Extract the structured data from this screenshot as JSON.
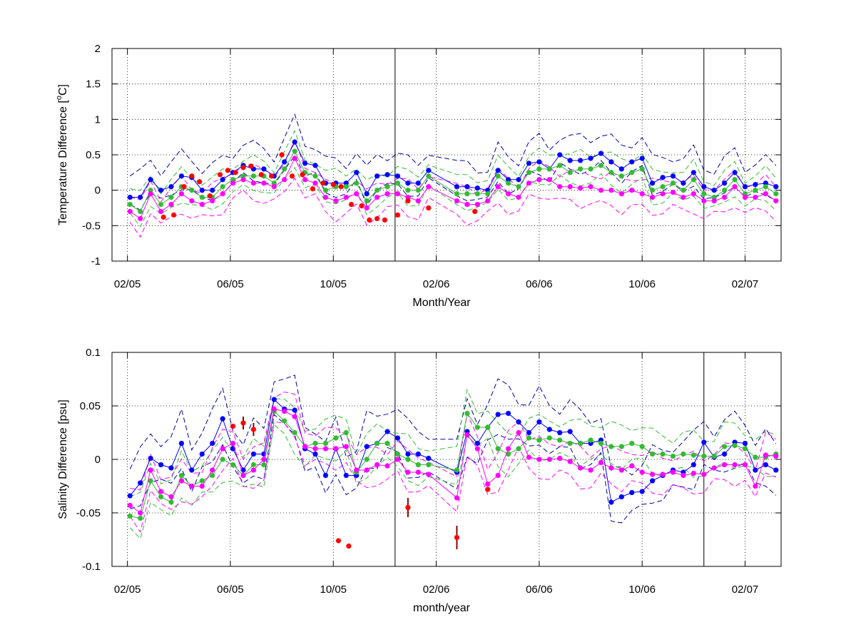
{
  "chart_data": [
    {
      "type": "line",
      "panel": "top",
      "xlabel": "Month/Year",
      "ylabel_main": "Temperature Difference [",
      "ylabel_sup": "o",
      "ylabel_tail": "C]",
      "xlim": [
        0,
        26
      ],
      "ylim": [
        -1,
        2
      ],
      "yticks": [
        -1,
        -0.5,
        0,
        0.5,
        1,
        1.5,
        2
      ],
      "ytick_labels": [
        "-1",
        "-0.5",
        "0",
        "0.5",
        "1",
        "1.5",
        "2"
      ],
      "xticks": [
        0.6,
        4.6,
        8.6,
        12.6,
        16.6,
        20.6,
        24.6
      ],
      "xtick_labels": [
        "02/05",
        "06/05",
        "10/05",
        "02/06",
        "06/06",
        "10/06",
        "02/07"
      ],
      "vertical_lines": [
        11,
        23
      ],
      "grid": true,
      "colors": {
        "blue": "#0000ff",
        "green": "#33bb33",
        "magenta": "#ff00ff",
        "red": "#ff0000",
        "darkblue": "#0000a0"
      },
      "series": [
        {
          "color": "blue",
          "role": "mean",
          "x": [
            0.7,
            1.1,
            1.5,
            1.9,
            2.3,
            2.7,
            3.1,
            3.5,
            3.9,
            4.3,
            4.7,
            5.1,
            5.5,
            5.9,
            6.3,
            6.7,
            7.1,
            7.5,
            7.9,
            8.3,
            8.7,
            9.1,
            9.5,
            9.9,
            10.3,
            10.7,
            11.1,
            11.5,
            11.9,
            12.3,
            13.4,
            13.8,
            14.2,
            14.6,
            15.0,
            15.4,
            15.8,
            16.2,
            16.6,
            17.0,
            17.4,
            17.8,
            18.2,
            18.6,
            19.0,
            19.4,
            19.8,
            20.2,
            20.6,
            21.0,
            21.4,
            21.8,
            22.2,
            22.6,
            23.0,
            23.4,
            23.8,
            24.2,
            24.6,
            25.0,
            25.4,
            25.8
          ],
          "y": [
            -0.1,
            -0.1,
            0.15,
            0,
            0.05,
            0.2,
            0.18,
            0,
            0,
            0.15,
            0.25,
            0.35,
            0.3,
            0.3,
            0.2,
            0.4,
            0.68,
            0.38,
            0.35,
            0.1,
            0.1,
            0.1,
            0.25,
            -0.05,
            0.2,
            0.22,
            0.2,
            0.1,
            0.1,
            0.28,
            0.05,
            0.05,
            0.03,
            0,
            0.28,
            0.15,
            0.15,
            0.38,
            0.4,
            0.3,
            0.5,
            0.42,
            0.42,
            0.45,
            0.52,
            0.4,
            0.3,
            0.4,
            0.45,
            0.1,
            0.18,
            0.2,
            0.1,
            0.25,
            0.05,
            0,
            0.1,
            0.25,
            0.05,
            0.08,
            0.1,
            0.05
          ]
        },
        {
          "color": "green",
          "role": "mean",
          "x": [
            0.7,
            1.1,
            1.5,
            1.9,
            2.3,
            2.7,
            3.1,
            3.5,
            3.9,
            4.3,
            4.7,
            5.1,
            5.5,
            5.9,
            6.3,
            6.7,
            7.1,
            7.5,
            7.9,
            8.3,
            8.7,
            9.1,
            9.5,
            9.9,
            10.3,
            10.7,
            11.1,
            11.5,
            11.9,
            12.3,
            13.4,
            13.8,
            14.2,
            14.6,
            15.0,
            15.4,
            15.8,
            16.2,
            16.6,
            17.0,
            17.4,
            17.8,
            18.2,
            18.6,
            19.0,
            19.4,
            19.8,
            20.2,
            20.6,
            21.0,
            21.4,
            21.8,
            22.2,
            22.6,
            23.0,
            23.4,
            23.8,
            24.2,
            24.6,
            25.0,
            25.4,
            25.8
          ],
          "y": [
            -0.2,
            -0.3,
            0,
            -0.2,
            -0.1,
            0.05,
            0,
            -0.1,
            -0.1,
            0.05,
            0.15,
            0.2,
            0.2,
            0.2,
            0.1,
            0.3,
            0.55,
            0.25,
            0.2,
            0,
            0.05,
            0.05,
            0.1,
            -0.15,
            0,
            0.05,
            0.1,
            0,
            0,
            0.2,
            -0.05,
            -0.05,
            -0.05,
            -0.05,
            0.2,
            0.1,
            0.05,
            0.25,
            0.3,
            0.3,
            0.35,
            0.25,
            0.3,
            0.3,
            0.35,
            0.25,
            0.2,
            0.25,
            0.3,
            0,
            0.05,
            0.1,
            0,
            0.15,
            -0.05,
            -0.1,
            0,
            0.15,
            -0.05,
            0,
            0.05,
            -0.05
          ]
        },
        {
          "color": "magenta",
          "role": "mean",
          "x": [
            0.7,
            1.1,
            1.5,
            1.9,
            2.3,
            2.7,
            3.1,
            3.5,
            3.9,
            4.3,
            4.7,
            5.1,
            5.5,
            5.9,
            6.3,
            6.7,
            7.1,
            7.5,
            7.9,
            8.3,
            8.7,
            9.1,
            9.5,
            9.9,
            10.3,
            10.7,
            11.1,
            11.5,
            11.9,
            12.3,
            13.4,
            13.8,
            14.2,
            14.6,
            15.0,
            15.4,
            15.8,
            16.2,
            16.6,
            17.0,
            17.4,
            17.8,
            18.2,
            18.6,
            19.0,
            19.4,
            19.8,
            20.2,
            20.6,
            21.0,
            21.4,
            21.8,
            22.2,
            22.6,
            23.0,
            23.4,
            23.8,
            24.2,
            24.6,
            25.0,
            25.4,
            25.8
          ],
          "y": [
            -0.3,
            -0.4,
            -0.05,
            -0.3,
            -0.2,
            -0.05,
            -0.15,
            -0.2,
            -0.15,
            -0.05,
            0.1,
            0.15,
            0.1,
            0.1,
            0.05,
            0.15,
            0.45,
            0.15,
            0.1,
            -0.1,
            -0.15,
            -0.1,
            -0.05,
            -0.25,
            -0.1,
            -0.05,
            -0.05,
            -0.1,
            -0.15,
            0.05,
            -0.15,
            -0.2,
            -0.2,
            -0.15,
            0.05,
            -0.05,
            -0.1,
            0.1,
            0.15,
            0.15,
            0.05,
            0.05,
            0.03,
            0.05,
            0,
            0,
            -0.05,
            0,
            -0.05,
            -0.1,
            -0.05,
            -0.03,
            -0.1,
            -0.05,
            -0.15,
            -0.15,
            -0.1,
            0.05,
            -0.1,
            -0.1,
            -0.05,
            -0.15
          ]
        },
        {
          "color": "red",
          "role": "observations",
          "x": [
            2.0,
            2.4,
            2.8,
            3.1,
            3.4,
            3.8,
            4.2,
            4.5,
            4.8,
            5.1,
            5.4,
            5.8,
            6.2,
            6.6,
            7.0,
            7.4,
            7.8,
            8.2,
            8.6,
            8.9,
            9.3,
            9.7,
            10.0,
            10.3,
            10.6,
            11.1,
            11.5,
            12.3,
            14.1
          ],
          "y": [
            -0.38,
            -0.35,
            0.05,
            0.2,
            0.12,
            -0.08,
            0.22,
            0.28,
            0.25,
            0.32,
            0.34,
            0.22,
            0.2,
            0.5,
            0.2,
            0.22,
            0.02,
            0.1,
            0.08,
            0.05,
            -0.2,
            -0.22,
            -0.42,
            -0.4,
            -0.42,
            -0.35,
            -0.15,
            -0.25,
            -0.3
          ]
        }
      ],
      "band_series": [
        {
          "color": "darkblue",
          "role": "upper",
          "offset": 0.3
        },
        {
          "color": "darkblue",
          "role": "lower",
          "offset": -0.15
        },
        {
          "color": "green",
          "role": "upper",
          "offset": 0.22
        },
        {
          "color": "green",
          "role": "lower",
          "offset": -0.18
        },
        {
          "color": "magenta",
          "role": "upper",
          "offset": 0.2
        },
        {
          "color": "magenta",
          "role": "lower",
          "offset": -0.22
        }
      ]
    },
    {
      "type": "line",
      "panel": "bottom",
      "xlabel": "month/year",
      "ylabel": "Salinity Difference [psu]",
      "xlim": [
        0,
        26
      ],
      "ylim": [
        -0.1,
        0.1
      ],
      "yticks": [
        -0.1,
        -0.05,
        0,
        0.05,
        0.1
      ],
      "ytick_labels": [
        "-0.1",
        "-0.05",
        "0",
        "0.05",
        "0.1"
      ],
      "xticks": [
        0.6,
        4.6,
        8.6,
        12.6,
        16.6,
        20.6,
        24.6
      ],
      "xtick_labels": [
        "02/05",
        "06/05",
        "10/05",
        "02/06",
        "06/06",
        "10/06",
        "02/07"
      ],
      "vertical_lines": [
        11,
        23
      ],
      "grid": true,
      "series": [
        {
          "color": "blue",
          "role": "mean",
          "x": [
            0.7,
            1.1,
            1.5,
            1.9,
            2.3,
            2.7,
            3.1,
            3.5,
            3.9,
            4.3,
            4.7,
            5.1,
            5.5,
            5.9,
            6.3,
            6.7,
            7.1,
            7.5,
            7.9,
            8.3,
            8.7,
            9.1,
            9.5,
            9.9,
            10.3,
            10.7,
            11.1,
            11.5,
            11.9,
            12.3,
            13.4,
            13.8,
            14.2,
            14.6,
            15.0,
            15.4,
            15.8,
            16.2,
            16.6,
            17.0,
            17.4,
            17.8,
            18.2,
            18.6,
            19.0,
            19.4,
            19.8,
            20.2,
            20.6,
            21.0,
            21.4,
            21.8,
            22.2,
            22.6,
            23.0,
            23.4,
            23.8,
            24.2,
            24.6,
            25.0,
            25.4,
            25.8
          ],
          "y": [
            -0.034,
            -0.022,
            0.001,
            -0.005,
            -0.008,
            0.015,
            -0.01,
            0.005,
            0.015,
            0.038,
            0.01,
            -0.01,
            0.005,
            0.005,
            0.056,
            0.047,
            0.046,
            0.01,
            0.005,
            -0.015,
            0.01,
            -0.015,
            -0.015,
            0.012,
            0.015,
            0.026,
            0.02,
            0.005,
            0.005,
            0.001,
            -0.012,
            0.026,
            0.015,
            0.03,
            0.042,
            0.043,
            0.035,
            0.025,
            0.035,
            0.028,
            0.025,
            0.026,
            0.015,
            0.015,
            0.018,
            -0.04,
            -0.035,
            -0.031,
            -0.03,
            -0.02,
            -0.015,
            -0.01,
            -0.012,
            -0.005,
            0.016,
            0.002,
            0.005,
            0.016,
            0.015,
            -0.01,
            -0.005,
            -0.01
          ]
        },
        {
          "color": "green",
          "role": "mean",
          "x": [
            0.7,
            1.1,
            1.5,
            1.9,
            2.3,
            2.7,
            3.1,
            3.5,
            3.9,
            4.3,
            4.7,
            5.1,
            5.5,
            5.9,
            6.3,
            6.7,
            7.1,
            7.5,
            7.9,
            8.3,
            8.7,
            9.1,
            9.5,
            9.9,
            10.3,
            10.7,
            11.1,
            11.5,
            11.9,
            12.3,
            13.4,
            13.8,
            14.2,
            14.6,
            15.0,
            15.4,
            15.8,
            16.2,
            16.6,
            17.0,
            17.4,
            17.8,
            18.2,
            18.6,
            19.0,
            19.4,
            19.8,
            20.2,
            20.6,
            21.0,
            21.4,
            21.8,
            22.2,
            22.6,
            23.0,
            23.4,
            23.8,
            24.2,
            24.6,
            25.0,
            25.4,
            25.8
          ],
          "y": [
            -0.053,
            -0.055,
            -0.02,
            -0.035,
            -0.04,
            -0.015,
            -0.025,
            -0.02,
            -0.015,
            0,
            -0.005,
            -0.015,
            -0.005,
            -0.005,
            0.045,
            0.036,
            0.025,
            0.012,
            0.015,
            0.015,
            0.02,
            0.025,
            -0.012,
            0,
            0.015,
            0.015,
            0.005,
            0,
            -0.005,
            -0.005,
            -0.01,
            0.043,
            0.03,
            0.03,
            0.01,
            0.005,
            0.01,
            0.02,
            0.018,
            0.02,
            0.018,
            0.015,
            0.015,
            0.018,
            0.015,
            0.012,
            0.012,
            0.015,
            0.012,
            0.005,
            0.005,
            0.003,
            0.005,
            0.004,
            0.003,
            0.003,
            0.012,
            0.013,
            0.01,
            0.002,
            0.002,
            0.005
          ]
        },
        {
          "color": "magenta",
          "role": "mean",
          "x": [
            0.7,
            1.1,
            1.5,
            1.9,
            2.3,
            2.7,
            3.1,
            3.5,
            3.9,
            4.3,
            4.7,
            5.1,
            5.5,
            5.9,
            6.3,
            6.7,
            7.1,
            7.5,
            7.9,
            8.3,
            8.7,
            9.1,
            9.5,
            9.9,
            10.3,
            10.7,
            11.1,
            11.5,
            11.9,
            12.3,
            13.4,
            13.8,
            14.2,
            14.6,
            15.0,
            15.4,
            15.8,
            16.2,
            16.6,
            17.0,
            17.4,
            17.8,
            18.2,
            18.6,
            19.0,
            19.4,
            19.8,
            20.2,
            20.6,
            21.0,
            21.4,
            21.8,
            22.2,
            22.6,
            23.0,
            23.4,
            23.8,
            24.2,
            24.6,
            25.0,
            25.4,
            25.8
          ],
          "y": [
            -0.043,
            -0.05,
            -0.01,
            -0.03,
            -0.035,
            -0.02,
            -0.025,
            -0.025,
            -0.01,
            0.01,
            0.015,
            -0.015,
            -0.01,
            0,
            0.047,
            0.045,
            0.04,
            0.012,
            0.01,
            0.01,
            0.01,
            0.012,
            -0.01,
            -0.01,
            -0.005,
            -0.006,
            0,
            -0.012,
            -0.012,
            -0.014,
            -0.036,
            0.023,
            0.01,
            -0.023,
            -0.015,
            0.01,
            0.025,
            0.002,
            0,
            0,
            0.001,
            -0.002,
            -0.008,
            -0.01,
            -0.003,
            -0.008,
            -0.01,
            -0.006,
            -0.012,
            -0.014,
            -0.014,
            -0.012,
            -0.015,
            -0.013,
            -0.014,
            -0.008,
            -0.005,
            -0.005,
            -0.005,
            -0.025,
            0.004,
            0.003
          ]
        },
        {
          "color": "red",
          "role": "observations",
          "x": [
            4.7,
            5.1,
            5.5,
            8.8,
            9.2,
            11.5,
            13.4,
            14.6
          ],
          "y": [
            0.031,
            0.034,
            0.028,
            -0.076,
            -0.081,
            -0.045,
            -0.073,
            -0.028
          ],
          "err": [
            0,
            0.006,
            0.006,
            0,
            0,
            0.009,
            0.011,
            0
          ]
        }
      ],
      "band_series": [
        {
          "color": "darkblue",
          "role": "upper",
          "offset": 0.025
        },
        {
          "color": "darkblue",
          "role": "lower",
          "offset": -0.018
        },
        {
          "color": "green",
          "role": "upper",
          "offset": 0.018
        },
        {
          "color": "green",
          "role": "lower",
          "offset": -0.016
        },
        {
          "color": "magenta",
          "role": "upper",
          "offset": 0.016
        },
        {
          "color": "magenta",
          "role": "lower",
          "offset": -0.015
        }
      ]
    }
  ]
}
